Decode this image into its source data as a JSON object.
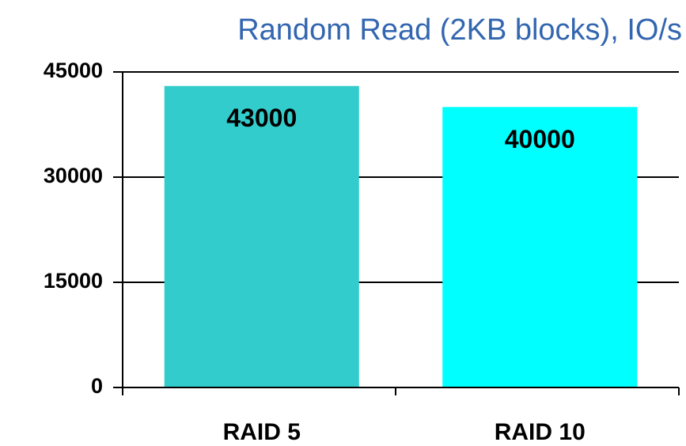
{
  "chart_data": {
    "type": "bar",
    "title": "Random Read (2KB blocks), IO/s",
    "categories": [
      "RAID 5",
      "RAID 10"
    ],
    "values": [
      43000,
      40000
    ],
    "colors": [
      "#33cccc",
      "#00ffff"
    ],
    "ylim": [
      0,
      45000
    ],
    "yticks": [
      0,
      15000,
      30000,
      45000
    ],
    "grid": true
  }
}
